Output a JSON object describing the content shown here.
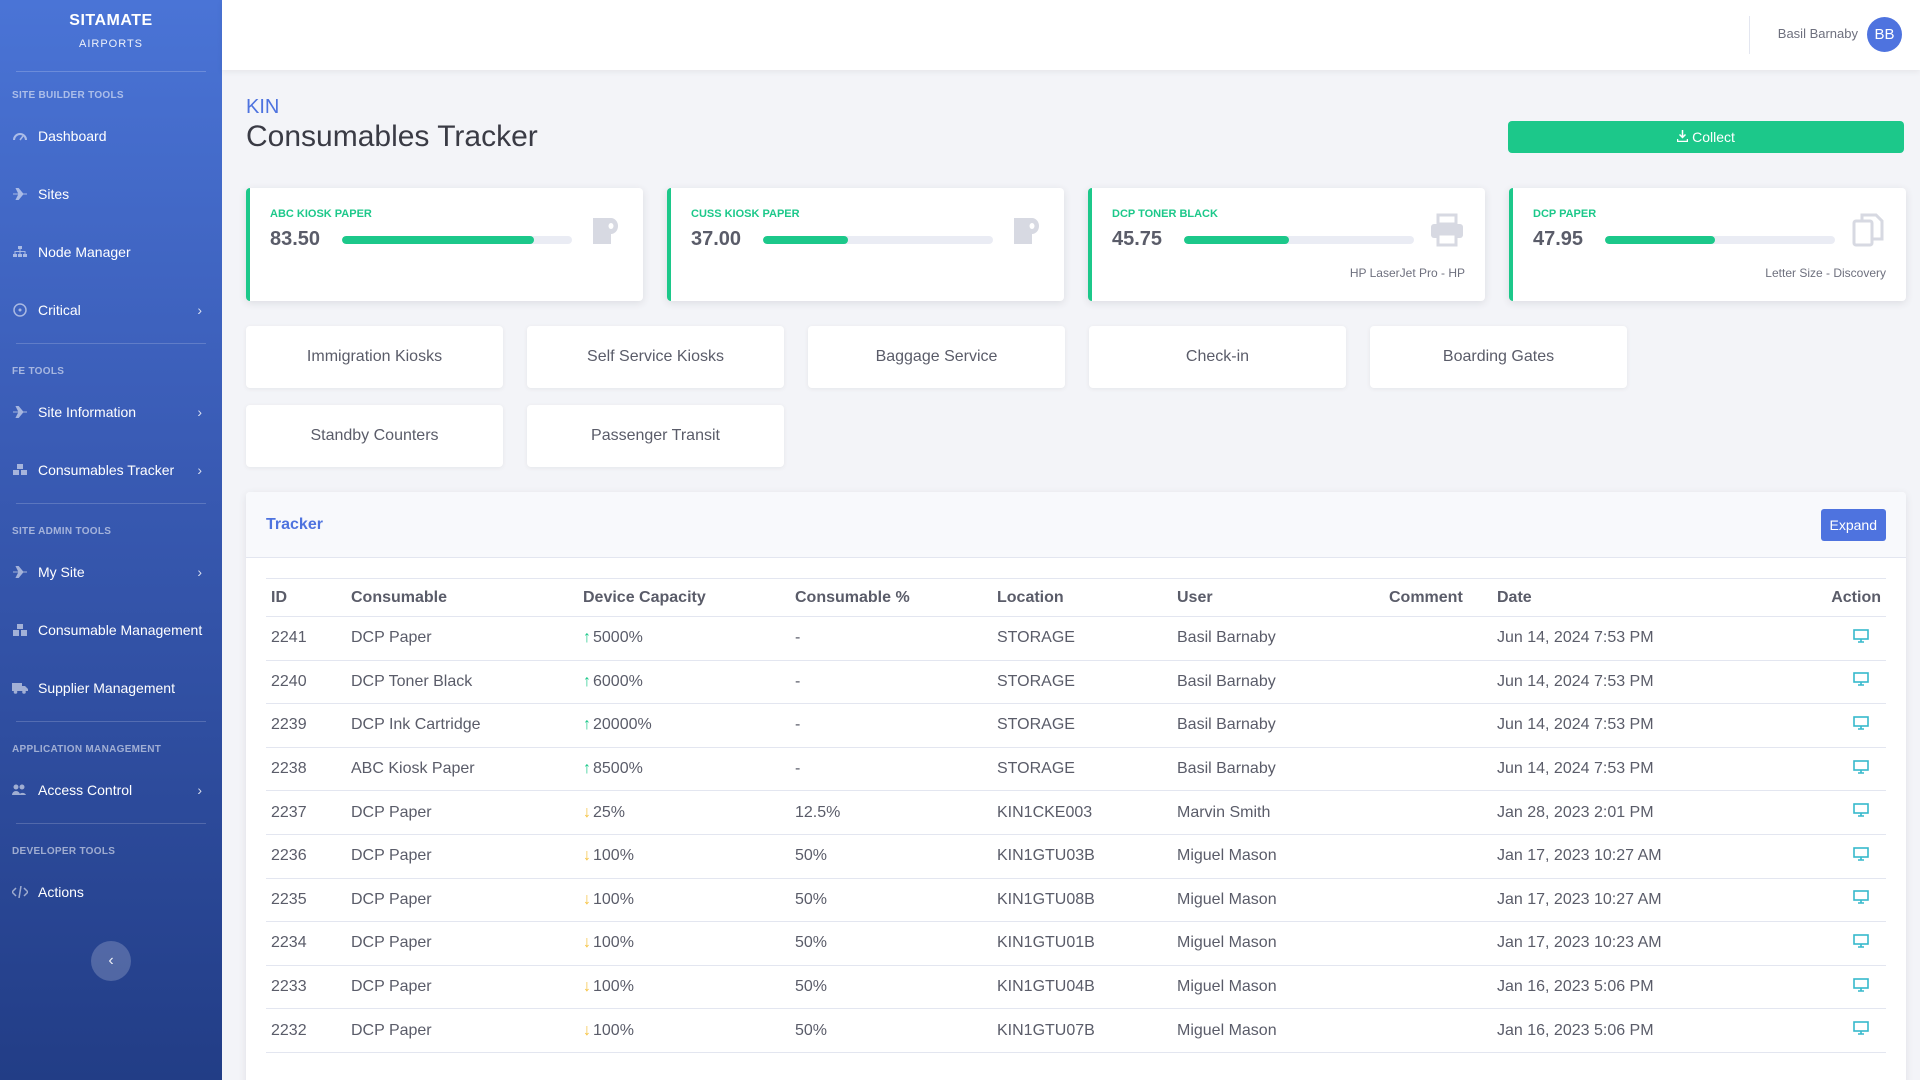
{
  "brand": {
    "title": "SITAMATE",
    "subtitle": "AIRPORTS"
  },
  "sidebar": {
    "sections": [
      {
        "heading": "SITE BUILDER TOOLS",
        "items": [
          {
            "label": "Dashboard",
            "icon": "dashboard-icon",
            "chevron": false
          },
          {
            "label": "Sites",
            "icon": "plane-icon",
            "chevron": false
          },
          {
            "label": "Node Manager",
            "icon": "sitemap-icon",
            "chevron": false
          },
          {
            "label": "Critical",
            "icon": "radiation-icon",
            "chevron": true
          }
        ]
      },
      {
        "heading": "FE TOOLS",
        "items": [
          {
            "label": "Site Information",
            "icon": "plane-icon",
            "chevron": true
          },
          {
            "label": "Consumables Tracker",
            "icon": "boxes-icon",
            "chevron": true
          }
        ]
      },
      {
        "heading": "SITE ADMIN TOOLS",
        "items": [
          {
            "label": "My Site",
            "icon": "plane-icon",
            "chevron": true
          },
          {
            "label": "Consumable Management",
            "icon": "cubes-icon",
            "chevron": false
          },
          {
            "label": "Supplier Management",
            "icon": "truck-icon",
            "chevron": false
          }
        ]
      },
      {
        "heading": "APPLICATION MANAGEMENT",
        "items": [
          {
            "label": "Access Control",
            "icon": "users-cog-icon",
            "chevron": true
          }
        ]
      },
      {
        "heading": "DEVELOPER TOOLS",
        "items": [
          {
            "label": "Actions",
            "icon": "code-icon",
            "chevron": false
          }
        ]
      }
    ]
  },
  "header": {
    "user_name": "Basil Barnaby",
    "avatar_initials": "BB"
  },
  "page": {
    "site_code": "KIN",
    "title": "Consumables Tracker",
    "collect_label": "Collect"
  },
  "cards": [
    {
      "title": "ABC KIOSK PAPER",
      "value": "83.50",
      "level": 0.835,
      "icon": "toilet-paper-icon",
      "subtitle": ""
    },
    {
      "title": "CUSS KIOSK PAPER",
      "value": "37.00",
      "level": 0.37,
      "icon": "toilet-paper-icon",
      "subtitle": ""
    },
    {
      "title": "DCP TONER BLACK",
      "value": "45.75",
      "level": 0.4575,
      "icon": "printer-icon",
      "subtitle": "HP LaserJet Pro - HP"
    },
    {
      "title": "DCP PAPER",
      "value": "47.95",
      "level": 0.4795,
      "icon": "copy-icon",
      "subtitle": "Letter Size - Discovery"
    }
  ],
  "areas": [
    "Immigration Kiosks",
    "Self Service Kiosks",
    "Baggage Service",
    "Check-in",
    "Boarding Gates",
    "Standby Counters",
    "Passenger Transit"
  ],
  "tracker": {
    "title": "Tracker",
    "expand_label": "Expand",
    "columns": [
      "ID",
      "Consumable",
      "Device Capacity",
      "Consumable %",
      "Location",
      "User",
      "Comment",
      "Date",
      "Action"
    ],
    "rows": [
      {
        "id": "2241",
        "consumable": "DCP Paper",
        "direction": "up",
        "capacity": "5000%",
        "percent": "-",
        "location": "STORAGE",
        "user": "Basil Barnaby",
        "comment": "",
        "date": "Jun 14, 2024 7:53 PM"
      },
      {
        "id": "2240",
        "consumable": "DCP Toner Black",
        "direction": "up",
        "capacity": "6000%",
        "percent": "-",
        "location": "STORAGE",
        "user": "Basil Barnaby",
        "comment": "",
        "date": "Jun 14, 2024 7:53 PM"
      },
      {
        "id": "2239",
        "consumable": "DCP Ink Cartridge",
        "direction": "up",
        "capacity": "20000%",
        "percent": "-",
        "location": "STORAGE",
        "user": "Basil Barnaby",
        "comment": "",
        "date": "Jun 14, 2024 7:53 PM"
      },
      {
        "id": "2238",
        "consumable": "ABC Kiosk Paper",
        "direction": "up",
        "capacity": "8500%",
        "percent": "-",
        "location": "STORAGE",
        "user": "Basil Barnaby",
        "comment": "",
        "date": "Jun 14, 2024 7:53 PM"
      },
      {
        "id": "2237",
        "consumable": "DCP Paper",
        "direction": "down",
        "capacity": "25%",
        "percent": "12.5%",
        "location": "KIN1CKE003",
        "user": "Marvin Smith",
        "comment": "",
        "date": "Jan 28, 2023 2:01 PM"
      },
      {
        "id": "2236",
        "consumable": "DCP Paper",
        "direction": "down",
        "capacity": "100%",
        "percent": "50%",
        "location": "KIN1GTU03B",
        "user": "Miguel Mason",
        "comment": "",
        "date": "Jan 17, 2023 10:27 AM"
      },
      {
        "id": "2235",
        "consumable": "DCP Paper",
        "direction": "down",
        "capacity": "100%",
        "percent": "50%",
        "location": "KIN1GTU08B",
        "user": "Miguel Mason",
        "comment": "",
        "date": "Jan 17, 2023 10:27 AM"
      },
      {
        "id": "2234",
        "consumable": "DCP Paper",
        "direction": "down",
        "capacity": "100%",
        "percent": "50%",
        "location": "KIN1GTU01B",
        "user": "Miguel Mason",
        "comment": "",
        "date": "Jan 17, 2023 10:23 AM"
      },
      {
        "id": "2233",
        "consumable": "DCP Paper",
        "direction": "down",
        "capacity": "100%",
        "percent": "50%",
        "location": "KIN1GTU04B",
        "user": "Miguel Mason",
        "comment": "",
        "date": "Jan 16, 2023 5:06 PM"
      },
      {
        "id": "2232",
        "consumable": "DCP Paper",
        "direction": "down",
        "capacity": "100%",
        "percent": "50%",
        "location": "KIN1GTU07B",
        "user": "Miguel Mason",
        "comment": "",
        "date": "Jan 16, 2023 5:06 PM"
      }
    ]
  },
  "colors": {
    "primary": "#4e73df",
    "success": "#1cc88a",
    "warning": "#f6c23e",
    "info": "#36b9cc"
  }
}
